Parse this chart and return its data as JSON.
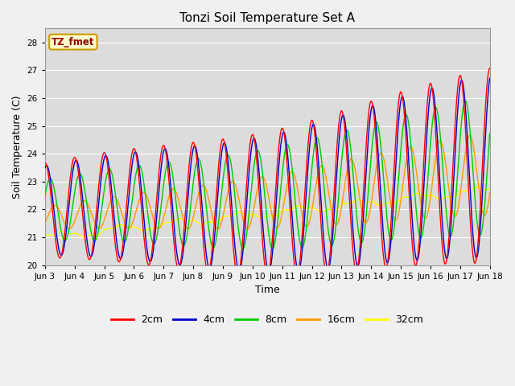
{
  "title": "Tonzi Soil Temperature Set A",
  "xlabel": "Time",
  "ylabel": "Soil Temperature (C)",
  "ylim": [
    20.0,
    28.5
  ],
  "yticks": [
    20.0,
    21.0,
    22.0,
    23.0,
    24.0,
    25.0,
    26.0,
    27.0,
    28.0
  ],
  "xtick_labels": [
    "Jun 3",
    "Jun 4",
    "Jun 5",
    "Jun 6",
    "Jun 7",
    "Jun 8",
    "Jun 9",
    "Jun 10",
    "Jun 11",
    "Jun 12",
    "Jun 13",
    "Jun 14",
    "Jun 15",
    "Jun 16",
    "Jun 17",
    "Jun 18"
  ],
  "colors": {
    "2cm": "#ff0000",
    "4cm": "#0000cc",
    "8cm": "#00cc00",
    "16cm": "#ff9900",
    "32cm": "#ffff00"
  },
  "legend_label": "TZ_fmet",
  "legend_bbox_facecolor": "#ffffcc",
  "legend_bbox_edgecolor": "#cc9900",
  "plot_bg": "#dcdcdc",
  "fig_bg": "#f0f0f0",
  "grid_color": "#ffffff"
}
